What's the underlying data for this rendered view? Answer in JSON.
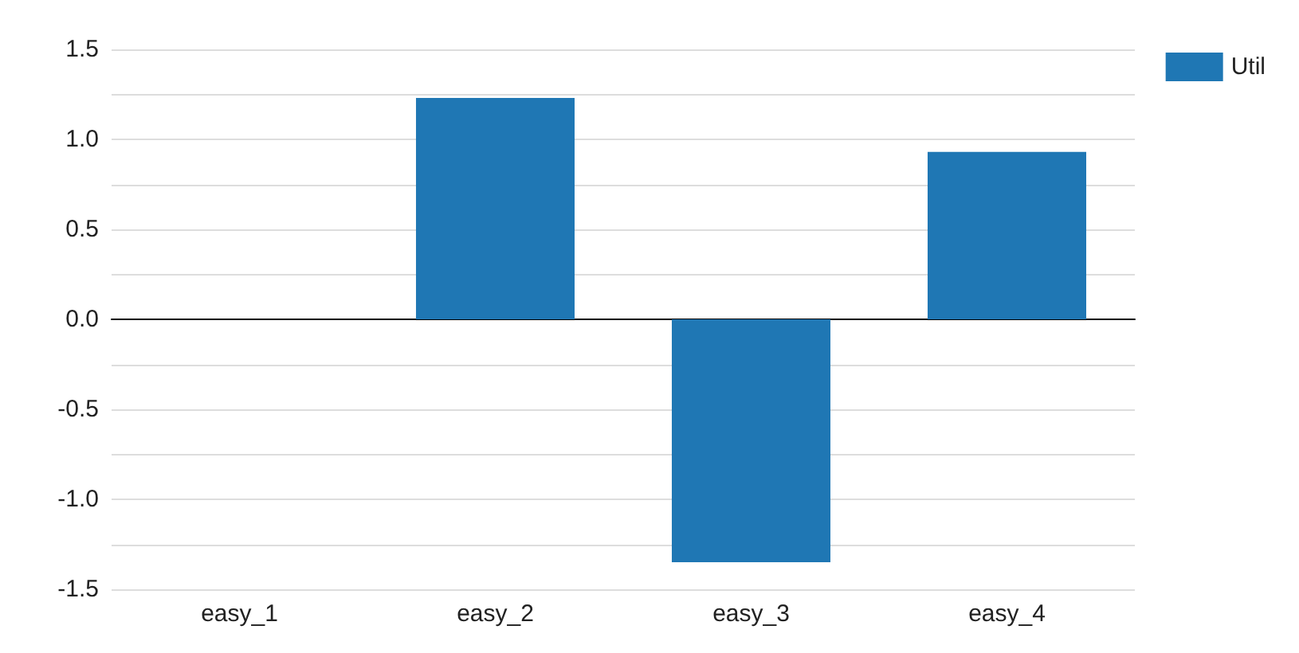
{
  "chart_data": {
    "type": "bar",
    "categories": [
      "easy_1",
      "easy_2",
      "easy_3",
      "easy_4"
    ],
    "series": [
      {
        "name": "Util",
        "color": "#1f77b4",
        "values": [
          0,
          1.23,
          -1.35,
          0.93
        ]
      }
    ],
    "ylim": [
      -1.5,
      1.5
    ],
    "yticks": [
      -1.5,
      {
        "value": -1.25,
        "label": null
      },
      "-1.0",
      {
        "value": -0.75,
        "label": null
      },
      -0.5,
      {
        "value": -0.25,
        "label": null
      },
      "0.0",
      {
        "value": 0.25,
        "label": null
      },
      0.5,
      {
        "value": 0.75,
        "label": null
      },
      "1.0",
      {
        "value": 1.25,
        "label": null
      },
      1.5
    ],
    "grid": "y",
    "legend": "top right"
  }
}
